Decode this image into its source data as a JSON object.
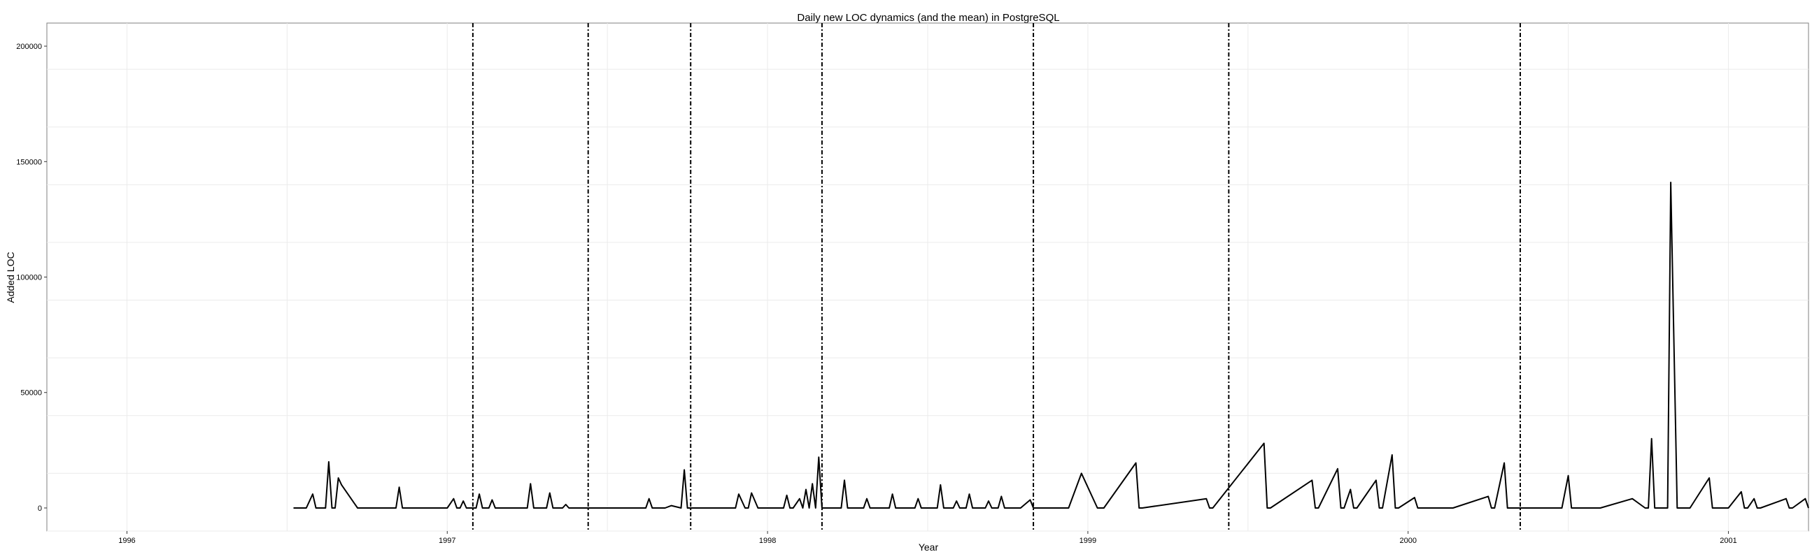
{
  "chart_data": {
    "type": "line",
    "title": "Daily new LOC dynamics (and the mean) in PostgreSQL",
    "xlabel": "Year",
    "ylabel": "Added LOC",
    "xlim": [
      1995.75,
      2001.25
    ],
    "ylim": [
      -10000,
      210000
    ],
    "x_ticks": [
      1996,
      1997,
      1998,
      1999,
      2000,
      2001
    ],
    "y_ticks": [
      0,
      50000,
      100000,
      150000,
      200000
    ],
    "grid": true,
    "legend": "none",
    "vertical_lines_x": [
      1997.08,
      1997.44,
      1997.76,
      1998.17,
      1998.83,
      1999.44,
      2000.35
    ],
    "series": [
      {
        "x": [
          1996.52,
          1996.56,
          1996.58,
          1996.59,
          1996.62,
          1996.63,
          1996.64,
          1996.65,
          1996.66,
          1996.67,
          1996.72,
          1996.8,
          1996.84,
          1996.85,
          1996.86,
          1996.88,
          1996.89,
          1996.9,
          1997.0,
          1997.02,
          1997.03,
          1997.04,
          1997.05,
          1997.06,
          1997.09,
          1997.1,
          1997.11,
          1997.13,
          1997.14,
          1997.15,
          1997.2,
          1997.25,
          1997.26,
          1997.27,
          1997.31,
          1997.32,
          1997.33,
          1997.36,
          1997.37,
          1997.38,
          1997.5,
          1997.62,
          1997.63,
          1997.64,
          1997.68,
          1997.7,
          1997.73,
          1997.74,
          1997.75,
          1997.8,
          1997.88,
          1997.9,
          1997.91,
          1997.93,
          1997.94,
          1997.95,
          1997.97,
          1997.98,
          1997.99,
          1998.05,
          1998.06,
          1998.07,
          1998.08,
          1998.1,
          1998.11,
          1998.12,
          1998.13,
          1998.14,
          1998.15,
          1998.16,
          1998.17,
          1998.21,
          1998.23,
          1998.24,
          1998.25,
          1998.28,
          1998.3,
          1998.31,
          1998.32,
          1998.38,
          1998.39,
          1998.4,
          1998.46,
          1998.47,
          1998.48,
          1998.53,
          1998.54,
          1998.55,
          1998.58,
          1998.59,
          1998.6,
          1998.62,
          1998.63,
          1998.64,
          1998.68,
          1998.69,
          1998.7,
          1998.72,
          1998.73,
          1998.74,
          1998.79,
          1998.82,
          1998.83,
          1998.85,
          1998.9,
          1998.94,
          1998.98,
          1999.03,
          1999.04,
          1999.05,
          1999.15,
          1999.16,
          1999.17,
          1999.37,
          1999.38,
          1999.39,
          1999.55,
          1999.56,
          1999.57,
          1999.7,
          1999.71,
          1999.72,
          1999.78,
          1999.79,
          1999.8,
          1999.82,
          1999.83,
          1999.84,
          1999.9,
          1999.91,
          1999.92,
          1999.95,
          1999.96,
          1999.97,
          2000.02,
          2000.03,
          2000.04,
          2000.1,
          2000.14,
          2000.25,
          2000.26,
          2000.27,
          2000.3,
          2000.31,
          2000.32,
          2000.42,
          2000.46,
          2000.48,
          2000.5,
          2000.51,
          2000.52,
          2000.56,
          2000.6,
          2000.7,
          2000.74,
          2000.75,
          2000.76,
          2000.77,
          2000.8,
          2000.81,
          2000.82,
          2000.84,
          2000.85,
          2000.86,
          2000.88,
          2000.94,
          2000.95,
          2000.96,
          2001.0,
          2001.04,
          2001.05,
          2001.06,
          2001.08,
          2001.09,
          2001.1,
          2001.18,
          2001.19,
          2001.2,
          2001.24,
          2001.25
        ],
        "values": [
          0,
          0,
          6000,
          0,
          0,
          20000,
          0,
          0,
          13000,
          10000,
          0,
          0,
          0,
          9000,
          0,
          0,
          0,
          0,
          0,
          4000,
          0,
          0,
          3000,
          0,
          0,
          6000,
          0,
          0,
          3500,
          0,
          0,
          0,
          10500,
          0,
          0,
          6500,
          0,
          0,
          1500,
          0,
          0,
          0,
          4000,
          0,
          0,
          1000,
          0,
          16500,
          0,
          0,
          0,
          0,
          6000,
          0,
          0,
          6500,
          0,
          0,
          0,
          0,
          5500,
          0,
          0,
          4000,
          0,
          8000,
          0,
          10500,
          0,
          22000,
          0,
          0,
          0,
          12000,
          0,
          0,
          0,
          4000,
          0,
          0,
          6000,
          0,
          0,
          4000,
          0,
          0,
          10000,
          0,
          0,
          3000,
          0,
          0,
          6000,
          0,
          0,
          3000,
          0,
          0,
          5000,
          0,
          0,
          3500,
          0,
          0,
          0,
          0,
          15000,
          0,
          0,
          0,
          19500,
          0,
          0,
          4000,
          0,
          0,
          28000,
          0,
          0,
          12000,
          0,
          0,
          17000,
          0,
          0,
          8000,
          0,
          0,
          12000,
          0,
          0,
          23000,
          0,
          0,
          4500,
          0,
          0,
          0,
          0,
          5000,
          0,
          0,
          19500,
          0,
          0,
          0,
          0,
          0,
          14000,
          0,
          0,
          0,
          0,
          4000,
          0,
          0,
          30000,
          0,
          0,
          0,
          141000,
          0,
          0,
          0,
          0,
          13000,
          0,
          0,
          0,
          7000,
          0,
          0,
          4000,
          0,
          0,
          4000,
          0,
          0,
          4000,
          0
        ]
      }
    ]
  }
}
